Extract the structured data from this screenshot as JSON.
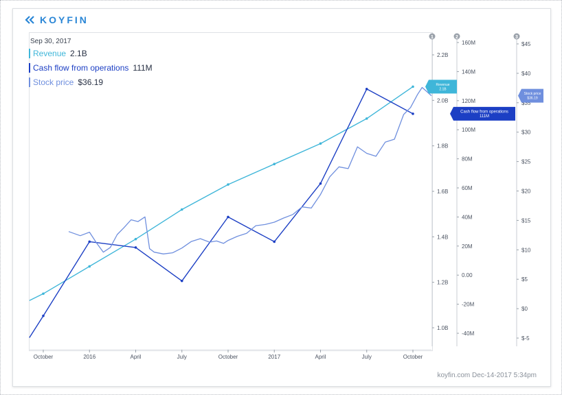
{
  "brand": {
    "name": "KOYFIN",
    "color": "#2a86d6"
  },
  "header": {
    "date": "Sep 30, 2017"
  },
  "legend": [
    {
      "name": "Revenue",
      "value": "2.1B",
      "color": "#3fb6d9"
    },
    {
      "name": "Cash flow from operations",
      "value": "111M",
      "color": "#1c3fc4"
    },
    {
      "name": "Stock price",
      "value": "$36.19",
      "color": "#6f8fde"
    }
  ],
  "footer": {
    "text": "koyfin.com Dec-14-2017 5:34pm"
  },
  "chart_data": {
    "type": "line",
    "title": "",
    "x_ticks": [
      "October",
      "2016",
      "April",
      "July",
      "October",
      "2017",
      "April",
      "July",
      "October"
    ],
    "axes": [
      {
        "id": "revenue",
        "badge": "1",
        "ticks": [
          "2.2B",
          "2.0B",
          "1.8B",
          "1.6B",
          "1.4B",
          "1.2B",
          "1.0B"
        ],
        "ylim": [
          0.95,
          2.35
        ]
      },
      {
        "id": "cashflow",
        "badge": "2",
        "ticks": [
          "160M",
          "140M",
          "120M",
          "100M",
          "80M",
          "60M",
          "40M",
          "20M",
          "0.00",
          "-20M",
          "-40M"
        ],
        "ylim": [
          -50,
          165
        ]
      },
      {
        "id": "price",
        "badge": "3",
        "ticks": [
          "$45",
          "$40",
          "$35",
          "$30",
          "$25",
          "$20",
          "$15",
          "$10",
          "$5",
          "$0",
          "$-5"
        ],
        "ylim": [
          -7,
          46
        ]
      }
    ],
    "series": [
      {
        "name": "Revenue",
        "axis": "revenue",
        "color": "#3fb6d9",
        "x": [
          -0.3,
          0,
          1,
          2,
          3,
          4,
          5,
          6,
          7,
          8
        ],
        "values": [
          1.12,
          1.15,
          1.27,
          1.39,
          1.52,
          1.63,
          1.72,
          1.81,
          1.92,
          2.06
        ]
      },
      {
        "name": "Cash flow from operations",
        "axis": "cashflow",
        "color": "#1c3fc4",
        "x": [
          -0.3,
          0,
          1,
          2,
          3,
          4,
          5,
          6,
          7,
          8
        ],
        "values": [
          -43,
          -28,
          23,
          19,
          -4,
          40,
          23,
          63,
          128,
          111
        ]
      },
      {
        "name": "Stock price",
        "axis": "price",
        "color": "#6f8fde",
        "x": [
          0.55,
          0.8,
          1.0,
          1.15,
          1.3,
          1.45,
          1.6,
          1.75,
          1.9,
          2.05,
          2.2,
          2.3,
          2.4,
          2.6,
          2.8,
          3.0,
          3.2,
          3.4,
          3.5,
          3.6,
          3.75,
          3.9,
          4.0,
          4.2,
          4.4,
          4.6,
          4.8,
          5.0,
          5.2,
          5.4,
          5.6,
          5.8,
          6.0,
          6.2,
          6.4,
          6.6,
          6.8,
          7.0,
          7.2,
          7.4,
          7.6,
          7.8,
          7.95,
          8.1,
          8.2,
          8.3,
          8.4
        ],
        "values": [
          13.1,
          12.4,
          13.0,
          11.2,
          9.6,
          10.4,
          12.6,
          13.8,
          15.1,
          14.8,
          15.6,
          10.2,
          9.6,
          9.3,
          9.5,
          10.3,
          11.4,
          11.9,
          11.6,
          11.3,
          11.5,
          11.1,
          11.6,
          12.3,
          12.8,
          14.1,
          14.3,
          14.7,
          15.4,
          16.0,
          17.3,
          17.1,
          19.4,
          22.4,
          24.1,
          23.8,
          27.5,
          26.4,
          25.9,
          28.3,
          28.8,
          33.0,
          34.2,
          36.4,
          37.6,
          36.9,
          36.19
        ]
      }
    ],
    "markers": [
      {
        "label": "Revenue 2.1B",
        "color": "#3fb6d9"
      },
      {
        "label": "Cash flow from operations 111M",
        "color": "#1c3fc4"
      },
      {
        "label": "Stock price $36.19",
        "color": "#6f8fde"
      }
    ]
  }
}
